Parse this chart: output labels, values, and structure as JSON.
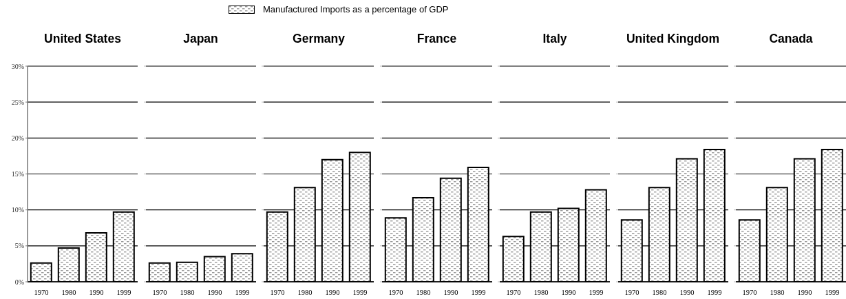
{
  "chart_data": [
    {
      "type": "bar",
      "title": "United States",
      "categories": [
        "1970",
        "1980",
        "1990",
        "1999"
      ],
      "series": [
        {
          "name": "Manufactured Imports as a percentage of GDP",
          "color": "#000000",
          "values": [
            2.6,
            4.7,
            6.8,
            9.7
          ]
        }
      ],
      "ylim": [
        0,
        30
      ],
      "yticks": [
        {
          "value": 0,
          "label": "0%"
        },
        {
          "value": 5,
          "label": "5%"
        },
        {
          "value": 10,
          "label": "10%"
        },
        {
          "value": 15,
          "label": "15%"
        },
        {
          "value": 20,
          "label": "20%"
        },
        {
          "value": 25,
          "label": "25%"
        },
        {
          "value": 30,
          "label": "30%"
        }
      ],
      "grid": "y",
      "legend": "top"
    },
    {
      "type": "bar",
      "title": "Japan",
      "categories": [
        "1970",
        "1980",
        "1990",
        "1999"
      ],
      "series": [
        {
          "color": "#000000",
          "values": [
            2.6,
            2.7,
            3.5,
            3.9
          ]
        }
      ],
      "ylim": [
        0,
        30
      ],
      "yticks": [
        {
          "value": 0,
          "label": null
        },
        {
          "value": 5,
          "label": null
        },
        {
          "value": 10,
          "label": null
        },
        {
          "value": 15,
          "label": null
        },
        {
          "value": 20,
          "label": null
        },
        {
          "value": 25,
          "label": null
        },
        {
          "value": 30,
          "label": null
        }
      ],
      "grid": "y",
      "tick_labels": "x"
    },
    {
      "type": "bar",
      "title": "Germany",
      "categories": [
        "1970",
        "1980",
        "1990",
        "1999"
      ],
      "series": [
        {
          "color": "#000000",
          "values": [
            9.7,
            13.1,
            17.0,
            18.0
          ]
        }
      ],
      "ylim": [
        0,
        30
      ],
      "yticks": [
        {
          "value": 0,
          "label": null
        },
        {
          "value": 5,
          "label": null
        },
        {
          "value": 10,
          "label": null
        },
        {
          "value": 15,
          "label": null
        },
        {
          "value": 20,
          "label": null
        },
        {
          "value": 25,
          "label": null
        },
        {
          "value": 30,
          "label": null
        }
      ],
      "grid": "y",
      "tick_labels": "x"
    },
    {
      "type": "bar",
      "title": "France",
      "categories": [
        "1970",
        "1980",
        "1990",
        "1999"
      ],
      "series": [
        {
          "color": "#000000",
          "values": [
            8.9,
            11.7,
            14.4,
            15.9
          ]
        }
      ],
      "ylim": [
        0,
        30
      ],
      "yticks": [
        {
          "value": 0,
          "label": null
        },
        {
          "value": 5,
          "label": null
        },
        {
          "value": 10,
          "label": null
        },
        {
          "value": 15,
          "label": null
        },
        {
          "value": 20,
          "label": null
        },
        {
          "value": 25,
          "label": null
        },
        {
          "value": 30,
          "label": null
        }
      ],
      "grid": "y",
      "tick_labels": "x"
    },
    {
      "type": "bar",
      "title": "Italy",
      "categories": [
        "1970",
        "1980",
        "1990",
        "1999"
      ],
      "series": [
        {
          "color": "#000000",
          "values": [
            6.3,
            9.7,
            10.2,
            12.8
          ]
        }
      ],
      "ylim": [
        0,
        30
      ],
      "yticks": [
        {
          "value": 0,
          "label": null
        },
        {
          "value": 5,
          "label": null
        },
        {
          "value": 10,
          "label": null
        },
        {
          "value": 15,
          "label": null
        },
        {
          "value": 20,
          "label": null
        },
        {
          "value": 25,
          "label": null
        },
        {
          "value": 30,
          "label": null
        }
      ],
      "grid": "y",
      "tick_labels": "x"
    },
    {
      "type": "bar",
      "title": "United Kingdom",
      "categories": [
        "1970",
        "1980",
        "1990",
        "1999"
      ],
      "series": [
        {
          "color": "#000000",
          "values": [
            8.6,
            13.1,
            17.1,
            18.4
          ]
        }
      ],
      "ylim": [
        0,
        30
      ],
      "yticks": [
        {
          "value": 0,
          "label": null
        },
        {
          "value": 5,
          "label": null
        },
        {
          "value": 10,
          "label": null
        },
        {
          "value": 15,
          "label": null
        },
        {
          "value": 20,
          "label": null
        },
        {
          "value": 25,
          "label": null
        },
        {
          "value": 30,
          "label": null
        }
      ],
      "grid": "y",
      "tick_labels": "x"
    },
    {
      "type": "bar",
      "title": "Canada",
      "categories": [
        "1970",
        "1980",
        "1990",
        "1999"
      ],
      "series": [
        {
          "color": "#000000",
          "values": [
            8.6,
            13.1,
            17.1,
            18.4
          ]
        }
      ],
      "ylim": [
        0,
        30
      ],
      "yticks": [
        {
          "value": 0,
          "label": null
        },
        {
          "value": 5,
          "label": null
        },
        {
          "value": 10,
          "label": null
        },
        {
          "value": 15,
          "label": null
        },
        {
          "value": 20,
          "label": null
        },
        {
          "value": 25,
          "label": null
        },
        {
          "value": 30,
          "label": null
        }
      ],
      "grid": "y",
      "tick_labels": "x"
    }
  ]
}
